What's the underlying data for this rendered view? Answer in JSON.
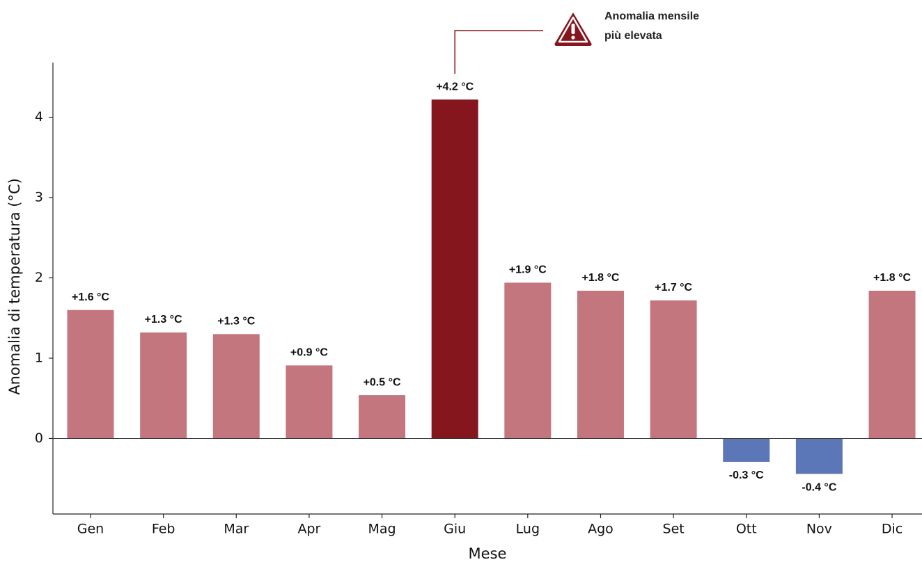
{
  "chart_data": {
    "type": "bar",
    "x_label": "Mese",
    "y_label": "Anomalia di temperatura (°C)",
    "categories": [
      "Gen",
      "Feb",
      "Mar",
      "Apr",
      "Mag",
      "Giu",
      "Lug",
      "Ago",
      "Set",
      "Ott",
      "Nov",
      "Dic"
    ],
    "values": [
      1.6,
      1.32,
      1.3,
      0.91,
      0.54,
      4.22,
      1.94,
      1.84,
      1.72,
      -0.29,
      -0.44,
      1.84
    ],
    "value_labels": [
      "+1.6 °C",
      "+1.3 °C",
      "+1.3 °C",
      "+0.9 °C",
      "+0.5 °C",
      "+4.2 °C",
      "+1.9 °C",
      "+1.8 °C",
      "+1.7 °C",
      "-0.3 °C",
      "-0.4 °C",
      "+1.8 °C"
    ],
    "colors": [
      "#c4767e",
      "#c4767e",
      "#c4767e",
      "#c4767e",
      "#c4767e",
      "#85161d",
      "#c4767e",
      "#c4767e",
      "#c4767e",
      "#5b77b7",
      "#5b77b7",
      "#c4767e"
    ],
    "positive_label_color": "#8a1c24",
    "negative_label_color": "#2b3a67",
    "annotation": [
      "Anomalia mensile",
      "più elevata"
    ],
    "ylim": [
      -0.94,
      4.68
    ],
    "yticks": [
      0,
      1,
      2,
      3,
      4
    ]
  }
}
